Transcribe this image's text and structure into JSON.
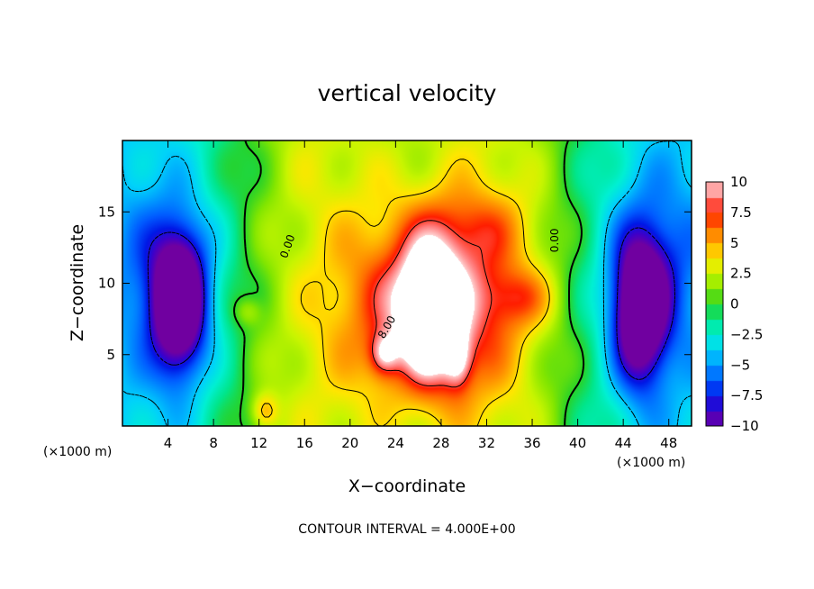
{
  "chart_data": {
    "type": "heatmap",
    "title": "vertical velocity",
    "xlabel": "X−coordinate",
    "ylabel": "Z−coordinate",
    "x_unit": "(×1000 m)",
    "x_ticks": [
      4,
      8,
      12,
      16,
      20,
      24,
      28,
      32,
      36,
      40,
      44,
      48
    ],
    "y_ticks": [
      5,
      10,
      15
    ],
    "xlim": [
      0,
      50
    ],
    "ylim": [
      0,
      20
    ],
    "colorbar": {
      "ticks": [
        "10",
        "7.5",
        "5",
        "2.5",
        "0",
        "−2.5",
        "−5",
        "−7.5",
        "−10"
      ],
      "range": [
        -10,
        10
      ]
    },
    "contour_interval_text": "CONTOUR INTERVAL = 4.000E+00",
    "contour_labels": [
      "0.00",
      "0.00",
      "8.00"
    ],
    "features": [
      {
        "type": "updraft",
        "x": 27,
        "z": 8.5,
        "peak": 10
      },
      {
        "type": "downdraft",
        "x": 5,
        "z": 8.5,
        "peak": -10
      },
      {
        "type": "downdraft",
        "x": 45.5,
        "z": 8,
        "peak": -10
      }
    ]
  }
}
